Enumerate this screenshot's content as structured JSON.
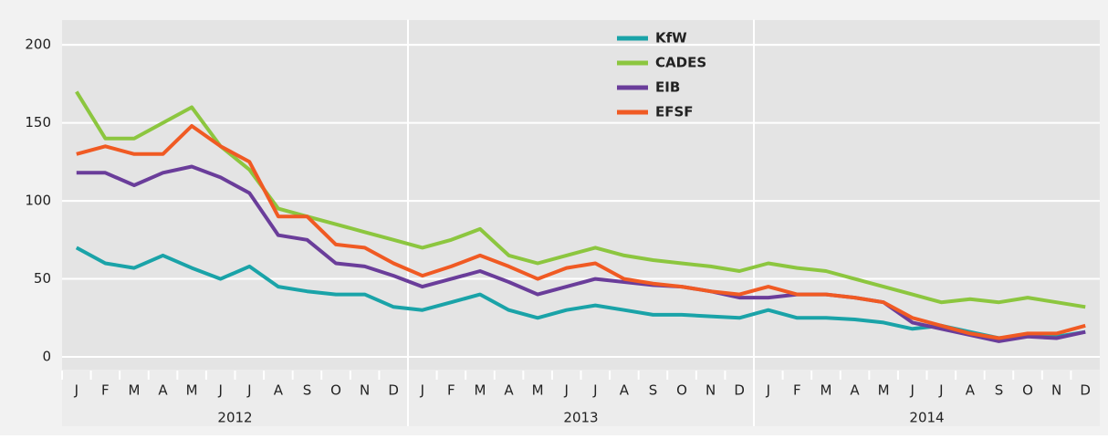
{
  "chart_data": {
    "type": "line",
    "categories": [
      "J",
      "F",
      "M",
      "A",
      "M",
      "J",
      "J",
      "A",
      "S",
      "O",
      "N",
      "D",
      "J",
      "F",
      "M",
      "A",
      "M",
      "J",
      "J",
      "A",
      "S",
      "O",
      "N",
      "D",
      "J",
      "F",
      "M",
      "A",
      "M",
      "J",
      "J",
      "A",
      "S",
      "O",
      "N",
      "D"
    ],
    "year_labels": [
      "2012",
      "2013",
      "2014"
    ],
    "series": [
      {
        "name": "KfW",
        "color": "#1aa3a8",
        "values": [
          70,
          60,
          57,
          65,
          57,
          50,
          58,
          45,
          42,
          40,
          40,
          32,
          30,
          35,
          40,
          30,
          25,
          30,
          33,
          30,
          27,
          27,
          26,
          25,
          30,
          25,
          25,
          24,
          22,
          18,
          20,
          16,
          12,
          14,
          13,
          16
        ]
      },
      {
        "name": "CADES",
        "color": "#8cc63f",
        "values": [
          170,
          140,
          140,
          150,
          160,
          135,
          120,
          95,
          90,
          85,
          80,
          75,
          70,
          75,
          82,
          65,
          60,
          65,
          70,
          65,
          62,
          60,
          58,
          55,
          60,
          57,
          55,
          50,
          45,
          40,
          35,
          37,
          35,
          38,
          35,
          32
        ]
      },
      {
        "name": "EIB",
        "color": "#6a3d9a",
        "values": [
          118,
          118,
          110,
          118,
          122,
          115,
          105,
          78,
          75,
          60,
          58,
          52,
          45,
          50,
          55,
          48,
          40,
          45,
          50,
          48,
          46,
          45,
          42,
          38,
          38,
          40,
          40,
          38,
          35,
          22,
          18,
          14,
          10,
          13,
          12,
          16
        ]
      },
      {
        "name": "EFSF",
        "color": "#f05a23",
        "values": [
          130,
          135,
          130,
          130,
          148,
          135,
          125,
          90,
          90,
          72,
          70,
          60,
          52,
          58,
          65,
          58,
          50,
          57,
          60,
          50,
          47,
          45,
          42,
          40,
          45,
          40,
          40,
          38,
          35,
          25,
          20,
          15,
          12,
          15,
          15,
          20
        ]
      }
    ],
    "ylim": [
      -8,
      215
    ],
    "yticks": [
      0,
      50,
      100,
      150,
      200
    ],
    "grid": true,
    "legend": "top"
  }
}
